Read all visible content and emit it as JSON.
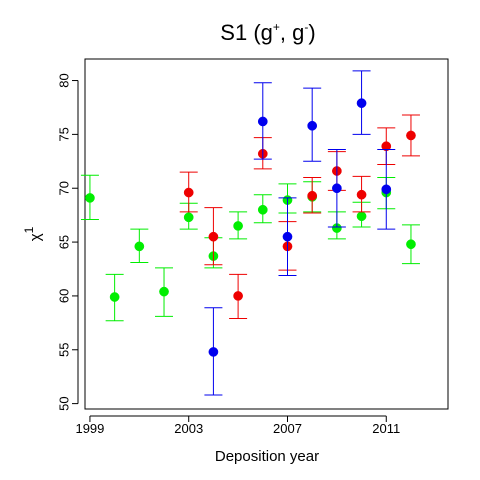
{
  "chart_data": {
    "type": "scatter",
    "title": {
      "prefix": "S1  (g",
      "sup1": "+",
      "middle": ", g",
      "sup2": "-",
      "suffix": ")"
    },
    "xlabel": "Deposition year",
    "ylabel": {
      "base": "χ",
      "sup": "1"
    },
    "xlim": [
      1998.8,
      2013.5
    ],
    "ylim": [
      49.5,
      82.0
    ],
    "x_ticks": [
      1999,
      2003,
      2007,
      2011
    ],
    "y_ticks": [
      50,
      55,
      60,
      65,
      70,
      75,
      80
    ],
    "x_tick_labels": [
      "1999",
      "2003",
      "2007",
      "2011"
    ],
    "y_tick_labels": [
      "50",
      "55",
      "60",
      "65",
      "70",
      "75",
      "80"
    ],
    "grid": false,
    "legend": "none",
    "error_bars": true,
    "series": [
      {
        "color": "#00ee00",
        "points": [
          {
            "x": 1999,
            "y": 69.1,
            "lo": 67.1,
            "hi": 71.2
          },
          {
            "x": 2000,
            "y": 59.9,
            "lo": 57.7,
            "hi": 62.0
          },
          {
            "x": 2001,
            "y": 64.6,
            "lo": 63.1,
            "hi": 66.2
          },
          {
            "x": 2002,
            "y": 60.4,
            "lo": 58.1,
            "hi": 62.6
          },
          {
            "x": 2003,
            "y": 67.3,
            "lo": 66.2,
            "hi": 68.6
          },
          {
            "x": 2004,
            "y": 63.7,
            "lo": 62.6,
            "hi": 65.4
          },
          {
            "x": 2005,
            "y": 66.5,
            "lo": 65.3,
            "hi": 67.8
          },
          {
            "x": 2006,
            "y": 68.0,
            "lo": 66.8,
            "hi": 69.4
          },
          {
            "x": 2007,
            "y": 68.9,
            "lo": 67.7,
            "hi": 70.4
          },
          {
            "x": 2008,
            "y": 69.2,
            "lo": 67.8,
            "hi": 70.6
          },
          {
            "x": 2009,
            "y": 66.3,
            "lo": 65.3,
            "hi": 67.8
          },
          {
            "x": 2010,
            "y": 67.4,
            "lo": 66.4,
            "hi": 68.7
          },
          {
            "x": 2011,
            "y": 69.6,
            "lo": 68.1,
            "hi": 71.0
          },
          {
            "x": 2012,
            "y": 64.8,
            "lo": 63.0,
            "hi": 66.6
          }
        ]
      },
      {
        "color": "#ee0000",
        "points": [
          {
            "x": 2003,
            "y": 69.6,
            "lo": 67.8,
            "hi": 71.5
          },
          {
            "x": 2004,
            "y": 65.5,
            "lo": 62.9,
            "hi": 68.2
          },
          {
            "x": 2005,
            "y": 60.0,
            "lo": 57.9,
            "hi": 62.0
          },
          {
            "x": 2006,
            "y": 73.2,
            "lo": 71.8,
            "hi": 74.7
          },
          {
            "x": 2007,
            "y": 64.6,
            "lo": 62.4,
            "hi": 66.9
          },
          {
            "x": 2008,
            "y": 69.3,
            "lo": 67.7,
            "hi": 71.0
          },
          {
            "x": 2009,
            "y": 71.6,
            "lo": 69.8,
            "hi": 73.4
          },
          {
            "x": 2010,
            "y": 69.4,
            "lo": 67.8,
            "hi": 71.1
          },
          {
            "x": 2011,
            "y": 73.9,
            "lo": 72.2,
            "hi": 75.6
          },
          {
            "x": 2012,
            "y": 74.9,
            "lo": 73.0,
            "hi": 76.8
          }
        ]
      },
      {
        "color": "#0000ee",
        "points": [
          {
            "x": 2004,
            "y": 54.8,
            "lo": 50.8,
            "hi": 58.9
          },
          {
            "x": 2006,
            "y": 76.2,
            "lo": 72.7,
            "hi": 79.8
          },
          {
            "x": 2007,
            "y": 65.5,
            "lo": 61.9,
            "hi": 69.1
          },
          {
            "x": 2008,
            "y": 75.8,
            "lo": 72.5,
            "hi": 79.3
          },
          {
            "x": 2009,
            "y": 70.0,
            "lo": 66.4,
            "hi": 73.6
          },
          {
            "x": 2010,
            "y": 77.9,
            "lo": 75.0,
            "hi": 80.9
          },
          {
            "x": 2011,
            "y": 69.9,
            "lo": 66.2,
            "hi": 73.6
          }
        ]
      }
    ]
  }
}
